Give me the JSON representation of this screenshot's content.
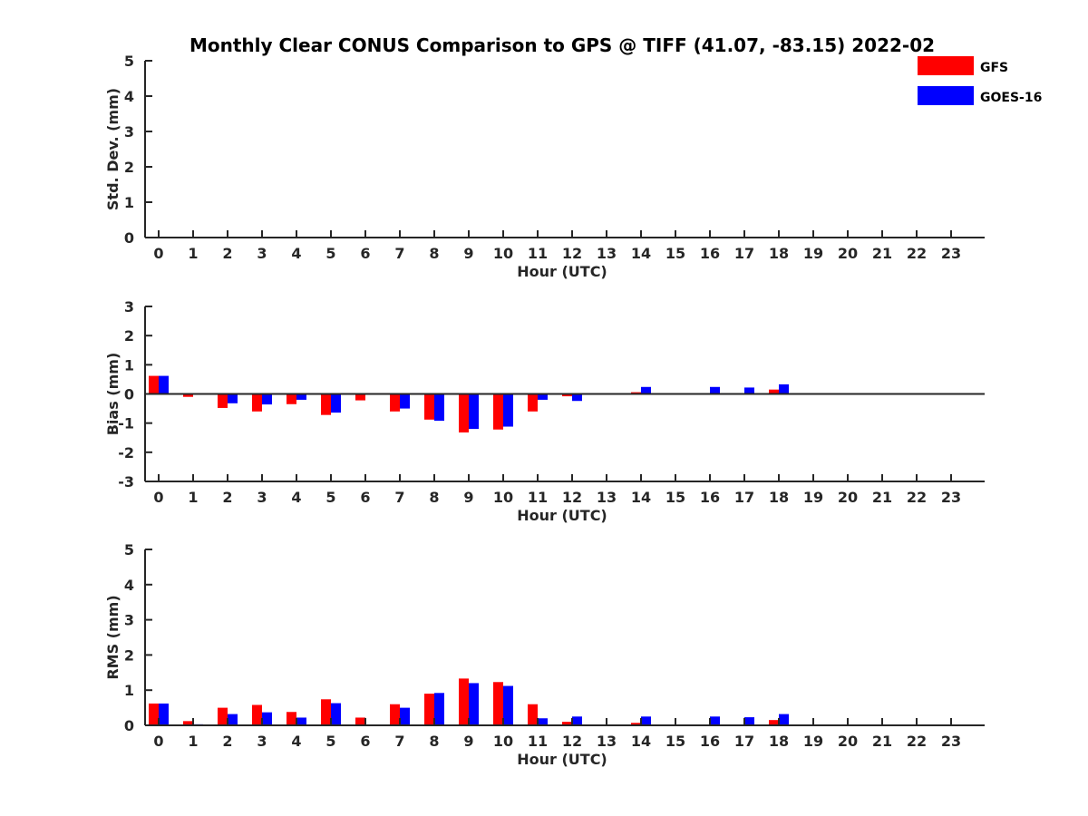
{
  "title": "Monthly Clear CONUS Comparison to GPS @ TIFF (41.07, -83.15) 2022-02",
  "colors": {
    "GFS": "#ff0000",
    "GOES-16": "#0000ff",
    "axis": "#262626"
  },
  "legend": {
    "placement": "top-right",
    "entries": [
      "GFS",
      "GOES-16"
    ]
  },
  "chart_data": [
    {
      "type": "bar",
      "title": "Monthly Clear CONUS Comparison to GPS @ TIFF (41.07, -83.15) 2022-02",
      "xlabel": "Hour (UTC)",
      "ylabel": "Std. Dev. (mm)",
      "ylim": [
        0,
        5
      ],
      "yticks": [
        0,
        1,
        2,
        3,
        4,
        5
      ],
      "categories": [
        "0",
        "1",
        "2",
        "3",
        "4",
        "5",
        "6",
        "7",
        "8",
        "9",
        "10",
        "11",
        "12",
        "13",
        "14",
        "15",
        "16",
        "17",
        "18",
        "19",
        "20",
        "21",
        "22",
        "23"
      ],
      "grid": false,
      "series": [
        {
          "name": "GFS",
          "values": [
            0,
            0,
            0,
            0,
            0,
            0,
            0,
            0,
            0,
            0,
            0,
            0,
            0,
            0,
            0,
            0,
            0,
            0,
            0,
            0,
            0,
            0,
            0,
            0
          ]
        },
        {
          "name": "GOES-16",
          "values": [
            0,
            0,
            0,
            0,
            0,
            0,
            0,
            0,
            0,
            0,
            0,
            0,
            0,
            0,
            0,
            0,
            0,
            0,
            0,
            0,
            0,
            0,
            0,
            0
          ]
        }
      ]
    },
    {
      "type": "bar",
      "xlabel": "Hour (UTC)",
      "ylabel": "Bias (mm)",
      "ylim": [
        -3,
        3
      ],
      "yticks": [
        -3,
        -2,
        -1,
        0,
        1,
        2,
        3
      ],
      "categories": [
        "0",
        "1",
        "2",
        "3",
        "4",
        "5",
        "6",
        "7",
        "8",
        "9",
        "10",
        "11",
        "12",
        "13",
        "14",
        "15",
        "16",
        "17",
        "18",
        "19",
        "20",
        "21",
        "22",
        "23"
      ],
      "grid": false,
      "series": [
        {
          "name": "GFS",
          "values": [
            0.62,
            -0.1,
            -0.48,
            -0.6,
            -0.35,
            -0.72,
            -0.22,
            -0.6,
            -0.88,
            -1.32,
            -1.22,
            -0.6,
            -0.08,
            0,
            0.06,
            0,
            0,
            0.03,
            0.15,
            0,
            0,
            0,
            0,
            0
          ]
        },
        {
          "name": "GOES-16",
          "values": [
            0.62,
            0.03,
            -0.32,
            -0.36,
            -0.2,
            -0.64,
            0,
            -0.5,
            -0.92,
            -1.2,
            -1.12,
            -0.2,
            -0.24,
            0,
            0.24,
            0,
            0.24,
            0.22,
            0.33,
            0,
            0,
            0,
            0,
            0
          ]
        }
      ]
    },
    {
      "type": "bar",
      "xlabel": "Hour (UTC)",
      "ylabel": "RMS (mm)",
      "ylim": [
        0,
        5
      ],
      "yticks": [
        0,
        1,
        2,
        3,
        4,
        5
      ],
      "categories": [
        "0",
        "1",
        "2",
        "3",
        "4",
        "5",
        "6",
        "7",
        "8",
        "9",
        "10",
        "11",
        "12",
        "13",
        "14",
        "15",
        "16",
        "17",
        "18",
        "19",
        "20",
        "21",
        "22",
        "23"
      ],
      "grid": false,
      "series": [
        {
          "name": "GFS",
          "values": [
            0.62,
            0.12,
            0.5,
            0.58,
            0.38,
            0.74,
            0.22,
            0.6,
            0.9,
            1.33,
            1.23,
            0.6,
            0.1,
            0,
            0.07,
            0,
            0,
            0.02,
            0.15,
            0,
            0,
            0,
            0,
            0
          ]
        },
        {
          "name": "GOES-16",
          "values": [
            0.62,
            0.03,
            0.32,
            0.37,
            0.22,
            0.63,
            0,
            0.5,
            0.92,
            1.2,
            1.12,
            0.2,
            0.25,
            0,
            0.25,
            0,
            0.25,
            0.23,
            0.32,
            0,
            0,
            0,
            0,
            0
          ]
        }
      ]
    }
  ]
}
